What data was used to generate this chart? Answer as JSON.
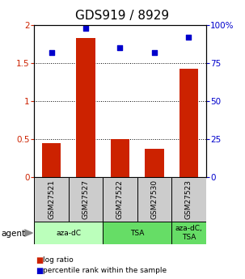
{
  "title": "GDS919 / 8929",
  "samples": [
    "GSM27521",
    "GSM27527",
    "GSM27522",
    "GSM27530",
    "GSM27523"
  ],
  "log_ratio": [
    0.45,
    1.83,
    0.5,
    0.37,
    1.43
  ],
  "percentile_rank": [
    82,
    98,
    85,
    82,
    92
  ],
  "bar_color": "#cc2200",
  "dot_color": "#0000cc",
  "ylim_left": [
    0,
    2
  ],
  "ylim_right": [
    0,
    100
  ],
  "yticks_left": [
    0,
    0.5,
    1.0,
    1.5,
    2.0
  ],
  "yticks_right": [
    0,
    25,
    50,
    75,
    100
  ],
  "ytick_labels_left": [
    "0",
    "0.5",
    "1",
    "1.5",
    "2"
  ],
  "ytick_labels_right": [
    "0",
    "25",
    "50",
    "75",
    "100%"
  ],
  "grid_values": [
    0.5,
    1.0,
    1.5
  ],
  "agent_groups": [
    {
      "label": "aza-dC",
      "cols": [
        0,
        1
      ],
      "color": "#bbffbb"
    },
    {
      "label": "TSA",
      "cols": [
        2,
        3
      ],
      "color": "#66dd66"
    },
    {
      "label": "aza-dC,\nTSA",
      "cols": [
        4
      ],
      "color": "#66dd66"
    }
  ],
  "agent_label": "agent",
  "legend_red_label": "log ratio",
  "legend_blue_label": "percentile rank within the sample",
  "sample_box_color": "#cccccc",
  "background_color": "#ffffff",
  "title_fontsize": 11,
  "tick_fontsize": 7.5
}
